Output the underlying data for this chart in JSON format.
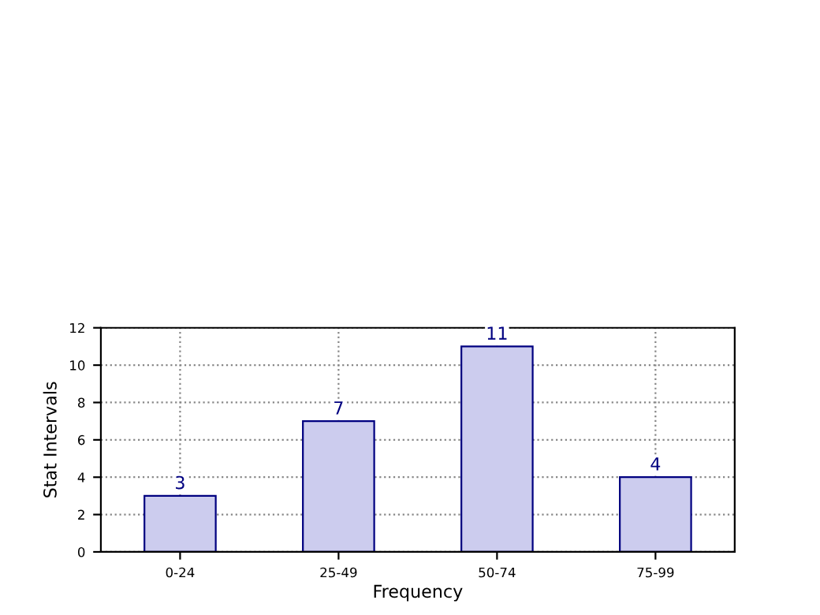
{
  "chart_data": {
    "type": "bar",
    "xlabel": "Frequency",
    "ylabel": "Stat Intervals",
    "categories": [
      "0-24",
      "25-49",
      "50-74",
      "75-99"
    ],
    "values": [
      3,
      7,
      11,
      4
    ],
    "color": "#ccccee",
    "ylim": [
      0,
      12
    ],
    "yticks": [
      0,
      2,
      4,
      6,
      8,
      10,
      12
    ],
    "grid": true,
    "data_labels": true
  }
}
